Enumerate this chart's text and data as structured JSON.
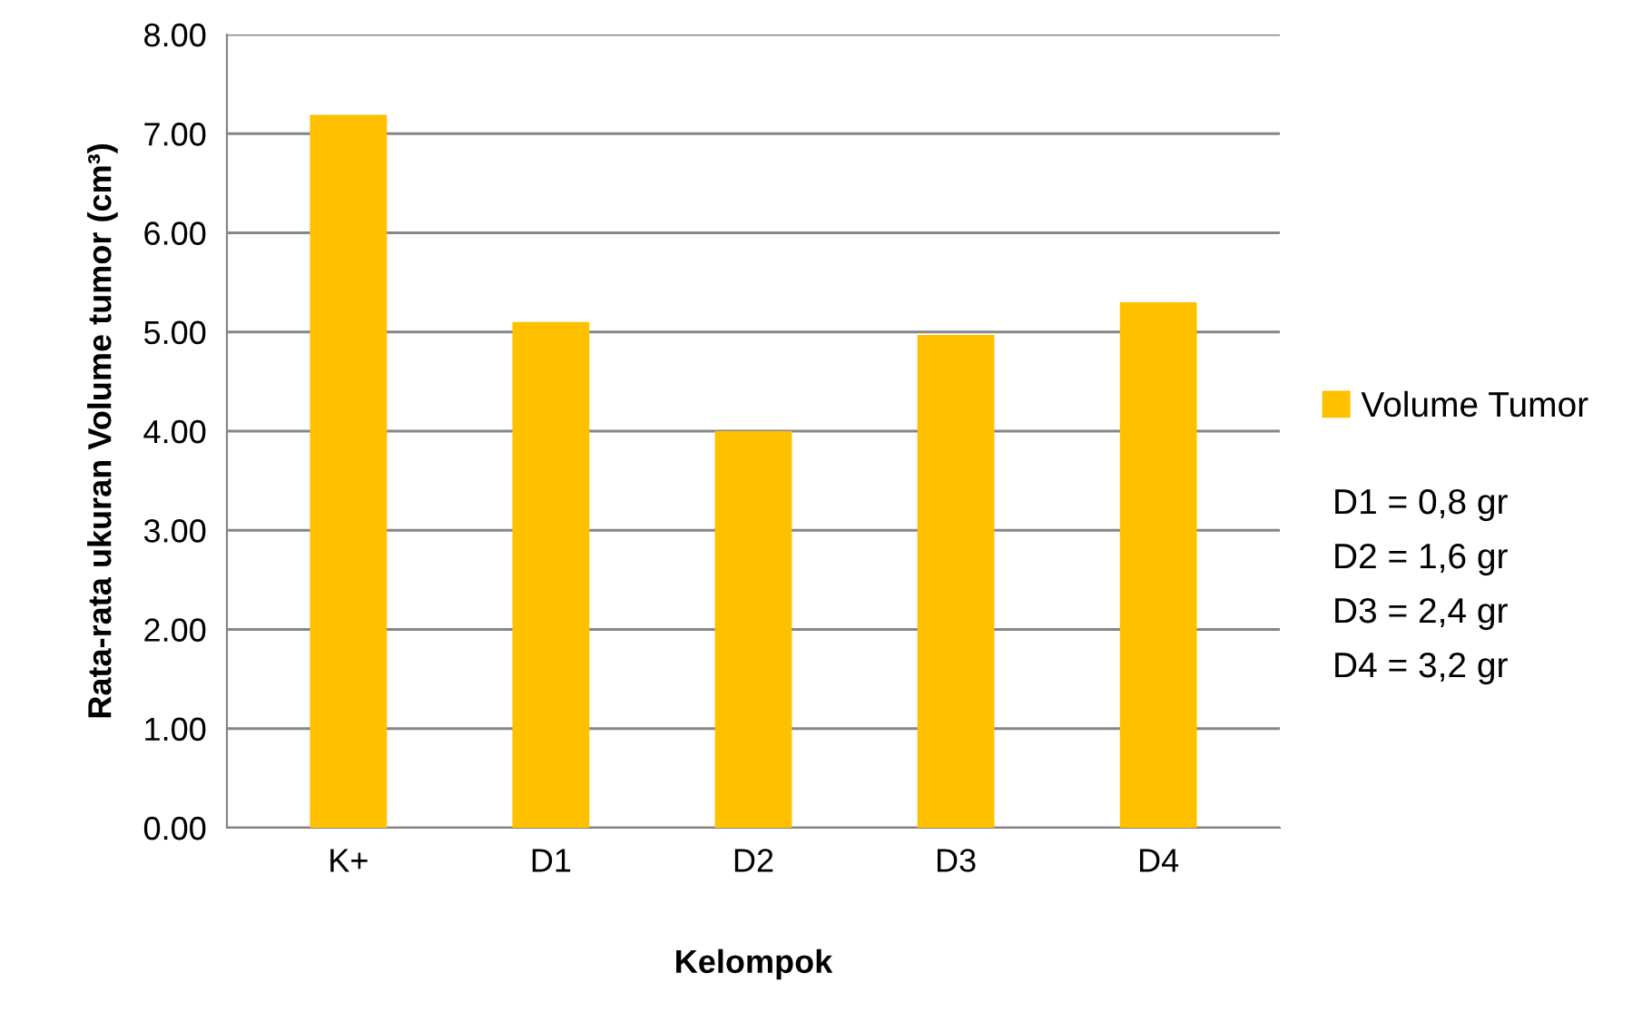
{
  "chart_data": {
    "type": "bar",
    "xlabel": "Kelompok",
    "ylabel": "Rata-rata ukuran Volume tumor (cm³)",
    "categories": [
      "K+",
      "D1",
      "D2",
      "D3",
      "D4"
    ],
    "series": [
      {
        "name": "Volume Tumor",
        "color": "#ffc000",
        "values": [
          7.19,
          5.1,
          4.0,
          4.97,
          5.3
        ]
      }
    ],
    "ylim": [
      0,
      8
    ],
    "yticks": [
      {
        "value": 0,
        "label": "0.00"
      },
      {
        "value": 1,
        "label": "1.00"
      },
      {
        "value": 2,
        "label": "2.00"
      },
      {
        "value": 3,
        "label": "3.00"
      },
      {
        "value": 4,
        "label": "4.00"
      },
      {
        "value": 5,
        "label": "5.00"
      },
      {
        "value": 6,
        "label": "6.00"
      },
      {
        "value": 7,
        "label": "7.00"
      },
      {
        "value": 8,
        "label": "8.00"
      }
    ],
    "grid": "y",
    "legend": "right",
    "annotations": [
      "D1 = 0,8 gr",
      "D2 = 1,6 gr",
      "D3 = 2,4 gr",
      "D4 = 3,2 gr"
    ]
  }
}
